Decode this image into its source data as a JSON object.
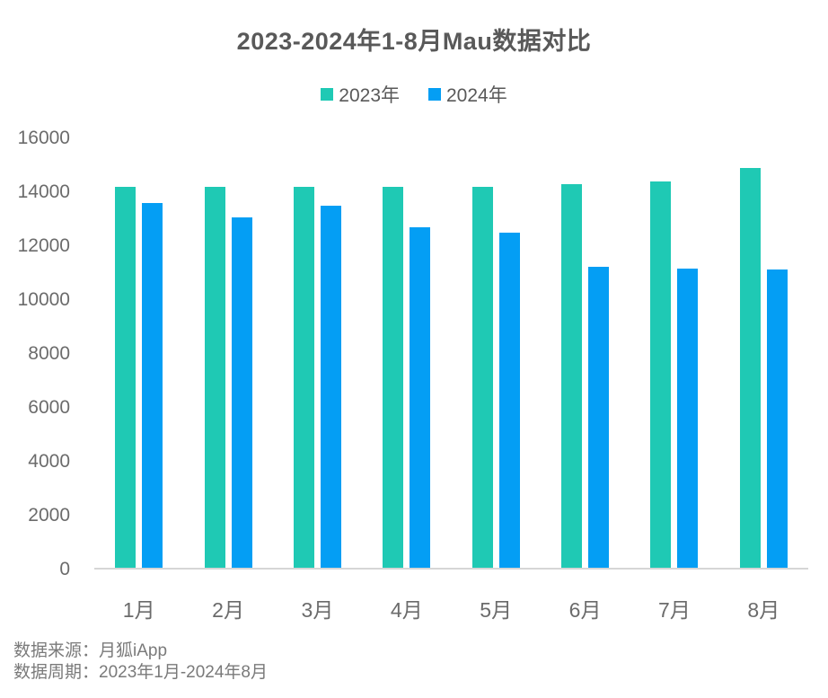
{
  "title": "2023-2024年1-8月Mau数据对比",
  "chart_data": {
    "type": "bar",
    "title": "2023-2024年1-8月Mau数据对比",
    "categories": [
      "1月",
      "2月",
      "3月",
      "4月",
      "5月",
      "6月",
      "7月",
      "8月"
    ],
    "series": [
      {
        "name": "2023年",
        "color": "#1fc9b4",
        "values": [
          14200,
          14200,
          14200,
          14200,
          14200,
          14300,
          14400,
          14900
        ]
      },
      {
        "name": "2024年",
        "color": "#049ef4",
        "values": [
          13600,
          13050,
          13500,
          12700,
          12500,
          11200,
          11150,
          11100
        ]
      }
    ],
    "xlabel": "",
    "ylabel": "",
    "ylim": [
      0,
      16000
    ],
    "ytick_step": 2000,
    "grid": false,
    "legend_position": "top"
  },
  "footer": {
    "source": "数据来源：月狐iApp",
    "period": "数据周期：2023年1月-2024年8月"
  },
  "colors": {
    "series_2023": "#1fc9b4",
    "series_2024": "#049ef4",
    "title_text": "#595959",
    "axis_text": "#6b6b6b",
    "footer_text": "#7a7a7a",
    "axis_line": "#d6d6d6",
    "background": "#ffffff"
  }
}
